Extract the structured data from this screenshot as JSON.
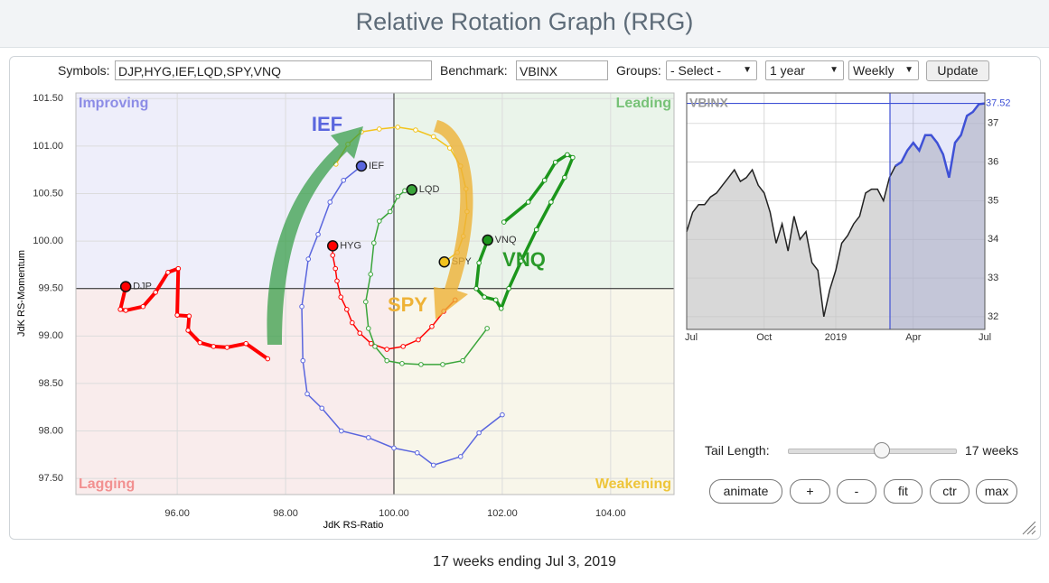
{
  "header": {
    "title": "Relative Rotation Graph (RRG)"
  },
  "controls": {
    "symbols_label": "Symbols:",
    "symbols": "DJP,HYG,IEF,LQD,SPY,VNQ",
    "benchmark_label": "Benchmark:",
    "benchmark": "VBINX",
    "groups_label": "Groups:",
    "groups": "- Select -",
    "period": "1 year",
    "frequency": "Weekly",
    "update": "Update",
    "tail_length_label": "Tail Length:",
    "tail_length": "17 weeks",
    "buttons": [
      "animate",
      "+",
      "-",
      "fit",
      "ctr",
      "max"
    ]
  },
  "chart_data": [
    {
      "type": "scatter",
      "x_label": "JdK RS-Ratio",
      "y_label": "JdK RS-Momentum",
      "xlim": [
        94.13,
        105.17
      ],
      "ylim": [
        97.33,
        101.56
      ],
      "xticks": [
        {
          "value": 96,
          "label": "96.00"
        },
        {
          "value": 98,
          "label": "98.00"
        },
        {
          "value": 100,
          "label": "100.00"
        },
        {
          "value": 102,
          "label": "102.00"
        },
        {
          "value": 104,
          "label": "104.00"
        }
      ],
      "yticks": [
        {
          "value": 97.5,
          "label": "97.50"
        },
        {
          "value": 98,
          "label": "98.00"
        },
        {
          "value": 98.5,
          "label": "98.50"
        },
        {
          "value": 99,
          "label": "99.00"
        },
        {
          "value": 99.5,
          "label": "99.50"
        },
        {
          "value": 100,
          "label": "100.00"
        },
        {
          "value": 100.5,
          "label": "100.50"
        },
        {
          "value": 101,
          "label": "101.00"
        },
        {
          "value": 101.5,
          "label": "101.50"
        }
      ],
      "grid": true,
      "quadrants": [
        {
          "name": "Improving",
          "corner": "top-left",
          "color": "#8c8ce6",
          "background": "#eeeefa"
        },
        {
          "name": "Leading",
          "corner": "top-right",
          "color": "#77c277",
          "background": "#eaf4ea"
        },
        {
          "name": "Lagging",
          "corner": "bottom-left",
          "color": "#f29090",
          "background": "#f9ecec"
        },
        {
          "name": "Weakening",
          "corner": "bottom-right",
          "color": "#eec53a",
          "background": "#f8f6ea"
        }
      ],
      "series": [
        {
          "name": "DJP",
          "color": "#ff0000",
          "line_width": 4,
          "x": [
            97.67,
            97.27,
            96.92,
            96.67,
            96.42,
            96.2,
            96.22,
            96.0,
            96.02,
            95.83,
            95.6,
            95.37,
            95.05,
            94.95,
            95.05
          ],
          "y": [
            98.76,
            98.92,
            98.88,
            98.89,
            98.93,
            99.06,
            99.21,
            99.22,
            99.71,
            99.67,
            99.46,
            99.31,
            99.27,
            99.28,
            99.52
          ]
        },
        {
          "name": "HYG",
          "color": "#ff0000",
          "line_width": 1.5,
          "x": [
            101.13,
            100.92,
            100.7,
            100.45,
            100.17,
            99.87,
            99.58,
            99.37,
            99.23,
            99.13,
            99.02,
            98.95,
            98.92,
            98.87,
            98.87
          ],
          "y": [
            99.38,
            99.26,
            99.1,
            98.96,
            98.89,
            98.86,
            98.92,
            99.03,
            99.14,
            99.28,
            99.41,
            99.58,
            99.71,
            99.85,
            99.95
          ]
        },
        {
          "name": "IEF",
          "color": "#5a66de",
          "line_width": 1.5,
          "x": [
            102.0,
            101.57,
            101.23,
            100.73,
            100.43,
            100.0,
            99.53,
            99.03,
            98.67,
            98.4,
            98.32,
            98.3,
            98.42,
            98.6,
            98.82,
            99.07,
            99.4
          ],
          "y": [
            98.17,
            97.98,
            97.73,
            97.64,
            97.77,
            97.82,
            97.93,
            98.0,
            98.24,
            98.39,
            98.74,
            99.31,
            99.81,
            100.07,
            100.41,
            100.64,
            100.79
          ]
        },
        {
          "name": "LQD",
          "color": "#3aa53a",
          "line_width": 1.5,
          "x": [
            101.72,
            101.27,
            100.9,
            100.5,
            100.15,
            99.87,
            99.65,
            99.53,
            99.48,
            99.57,
            99.63,
            99.73,
            99.93,
            100.07,
            100.2,
            100.33
          ],
          "y": [
            99.08,
            98.74,
            98.7,
            98.7,
            98.71,
            98.74,
            98.89,
            99.08,
            99.36,
            99.65,
            99.98,
            100.21,
            100.31,
            100.47,
            100.53,
            100.54
          ]
        },
        {
          "name": "SPY",
          "color": "#f2c31c",
          "line_width": 1.5,
          "x": [
            98.93,
            99.15,
            99.4,
            99.73,
            100.07,
            100.4,
            100.73,
            101.03,
            101.23,
            101.33,
            101.35,
            101.28,
            101.17,
            100.93
          ],
          "y": [
            100.81,
            101.02,
            101.15,
            101.18,
            101.2,
            101.17,
            101.1,
            100.98,
            100.79,
            100.55,
            100.31,
            100.05,
            99.88,
            99.78
          ]
        },
        {
          "name": "VNQ",
          "color": "#1c961c",
          "line_width": 3.5,
          "x": [
            102.03,
            102.48,
            102.78,
            102.98,
            103.2,
            103.3,
            103.15,
            102.9,
            102.63,
            102.35,
            102.12,
            101.98,
            101.88,
            101.67,
            101.52,
            101.57,
            101.73
          ],
          "y": [
            100.2,
            100.41,
            100.64,
            100.83,
            100.91,
            100.88,
            100.67,
            100.41,
            100.12,
            99.79,
            99.5,
            99.29,
            99.38,
            99.41,
            99.5,
            99.77,
            100.01
          ]
        }
      ],
      "annotations": [
        {
          "text": "IEF",
          "color": "#5a66de"
        },
        {
          "text": "SPY",
          "color": "#eeb236"
        },
        {
          "text": "VNQ",
          "color": "#2a9a2a"
        }
      ]
    },
    {
      "type": "line",
      "title": "VBINX",
      "color": "#222222",
      "highlight_color": "#3f51d6",
      "categories": [
        "Jul",
        null,
        null,
        null,
        null,
        null,
        null,
        null,
        null,
        null,
        null,
        null,
        null,
        "Oct",
        null,
        null,
        null,
        null,
        null,
        null,
        null,
        null,
        null,
        null,
        null,
        "2019",
        null,
        null,
        null,
        null,
        null,
        null,
        null,
        null,
        null,
        null,
        null,
        null,
        "Apr",
        null,
        null,
        null,
        null,
        null,
        null,
        null,
        null,
        null,
        null,
        null,
        "Jul"
      ],
      "values": [
        34.2,
        34.7,
        34.9,
        34.9,
        35.1,
        35.2,
        35.4,
        35.6,
        35.8,
        35.5,
        35.6,
        35.8,
        35.4,
        35.2,
        34.7,
        33.9,
        34.4,
        33.7,
        34.6,
        34.0,
        34.2,
        33.4,
        33.2,
        32.0,
        32.7,
        33.2,
        33.9,
        34.1,
        34.4,
        34.6,
        35.2,
        35.3,
        35.3,
        35.0,
        35.6,
        35.9,
        36.0,
        36.3,
        36.5,
        36.3,
        36.7,
        36.7,
        36.5,
        36.2,
        35.6,
        36.5,
        36.7,
        37.2,
        37.3,
        37.5,
        37.52
      ],
      "current_label": "37.52",
      "ylim": [
        31.67,
        37.79
      ],
      "yticks": [
        32,
        33,
        34,
        35,
        36,
        37
      ],
      "grid": true
    }
  ],
  "footer": {
    "text": "17 weeks ending Jul 3, 2019"
  }
}
